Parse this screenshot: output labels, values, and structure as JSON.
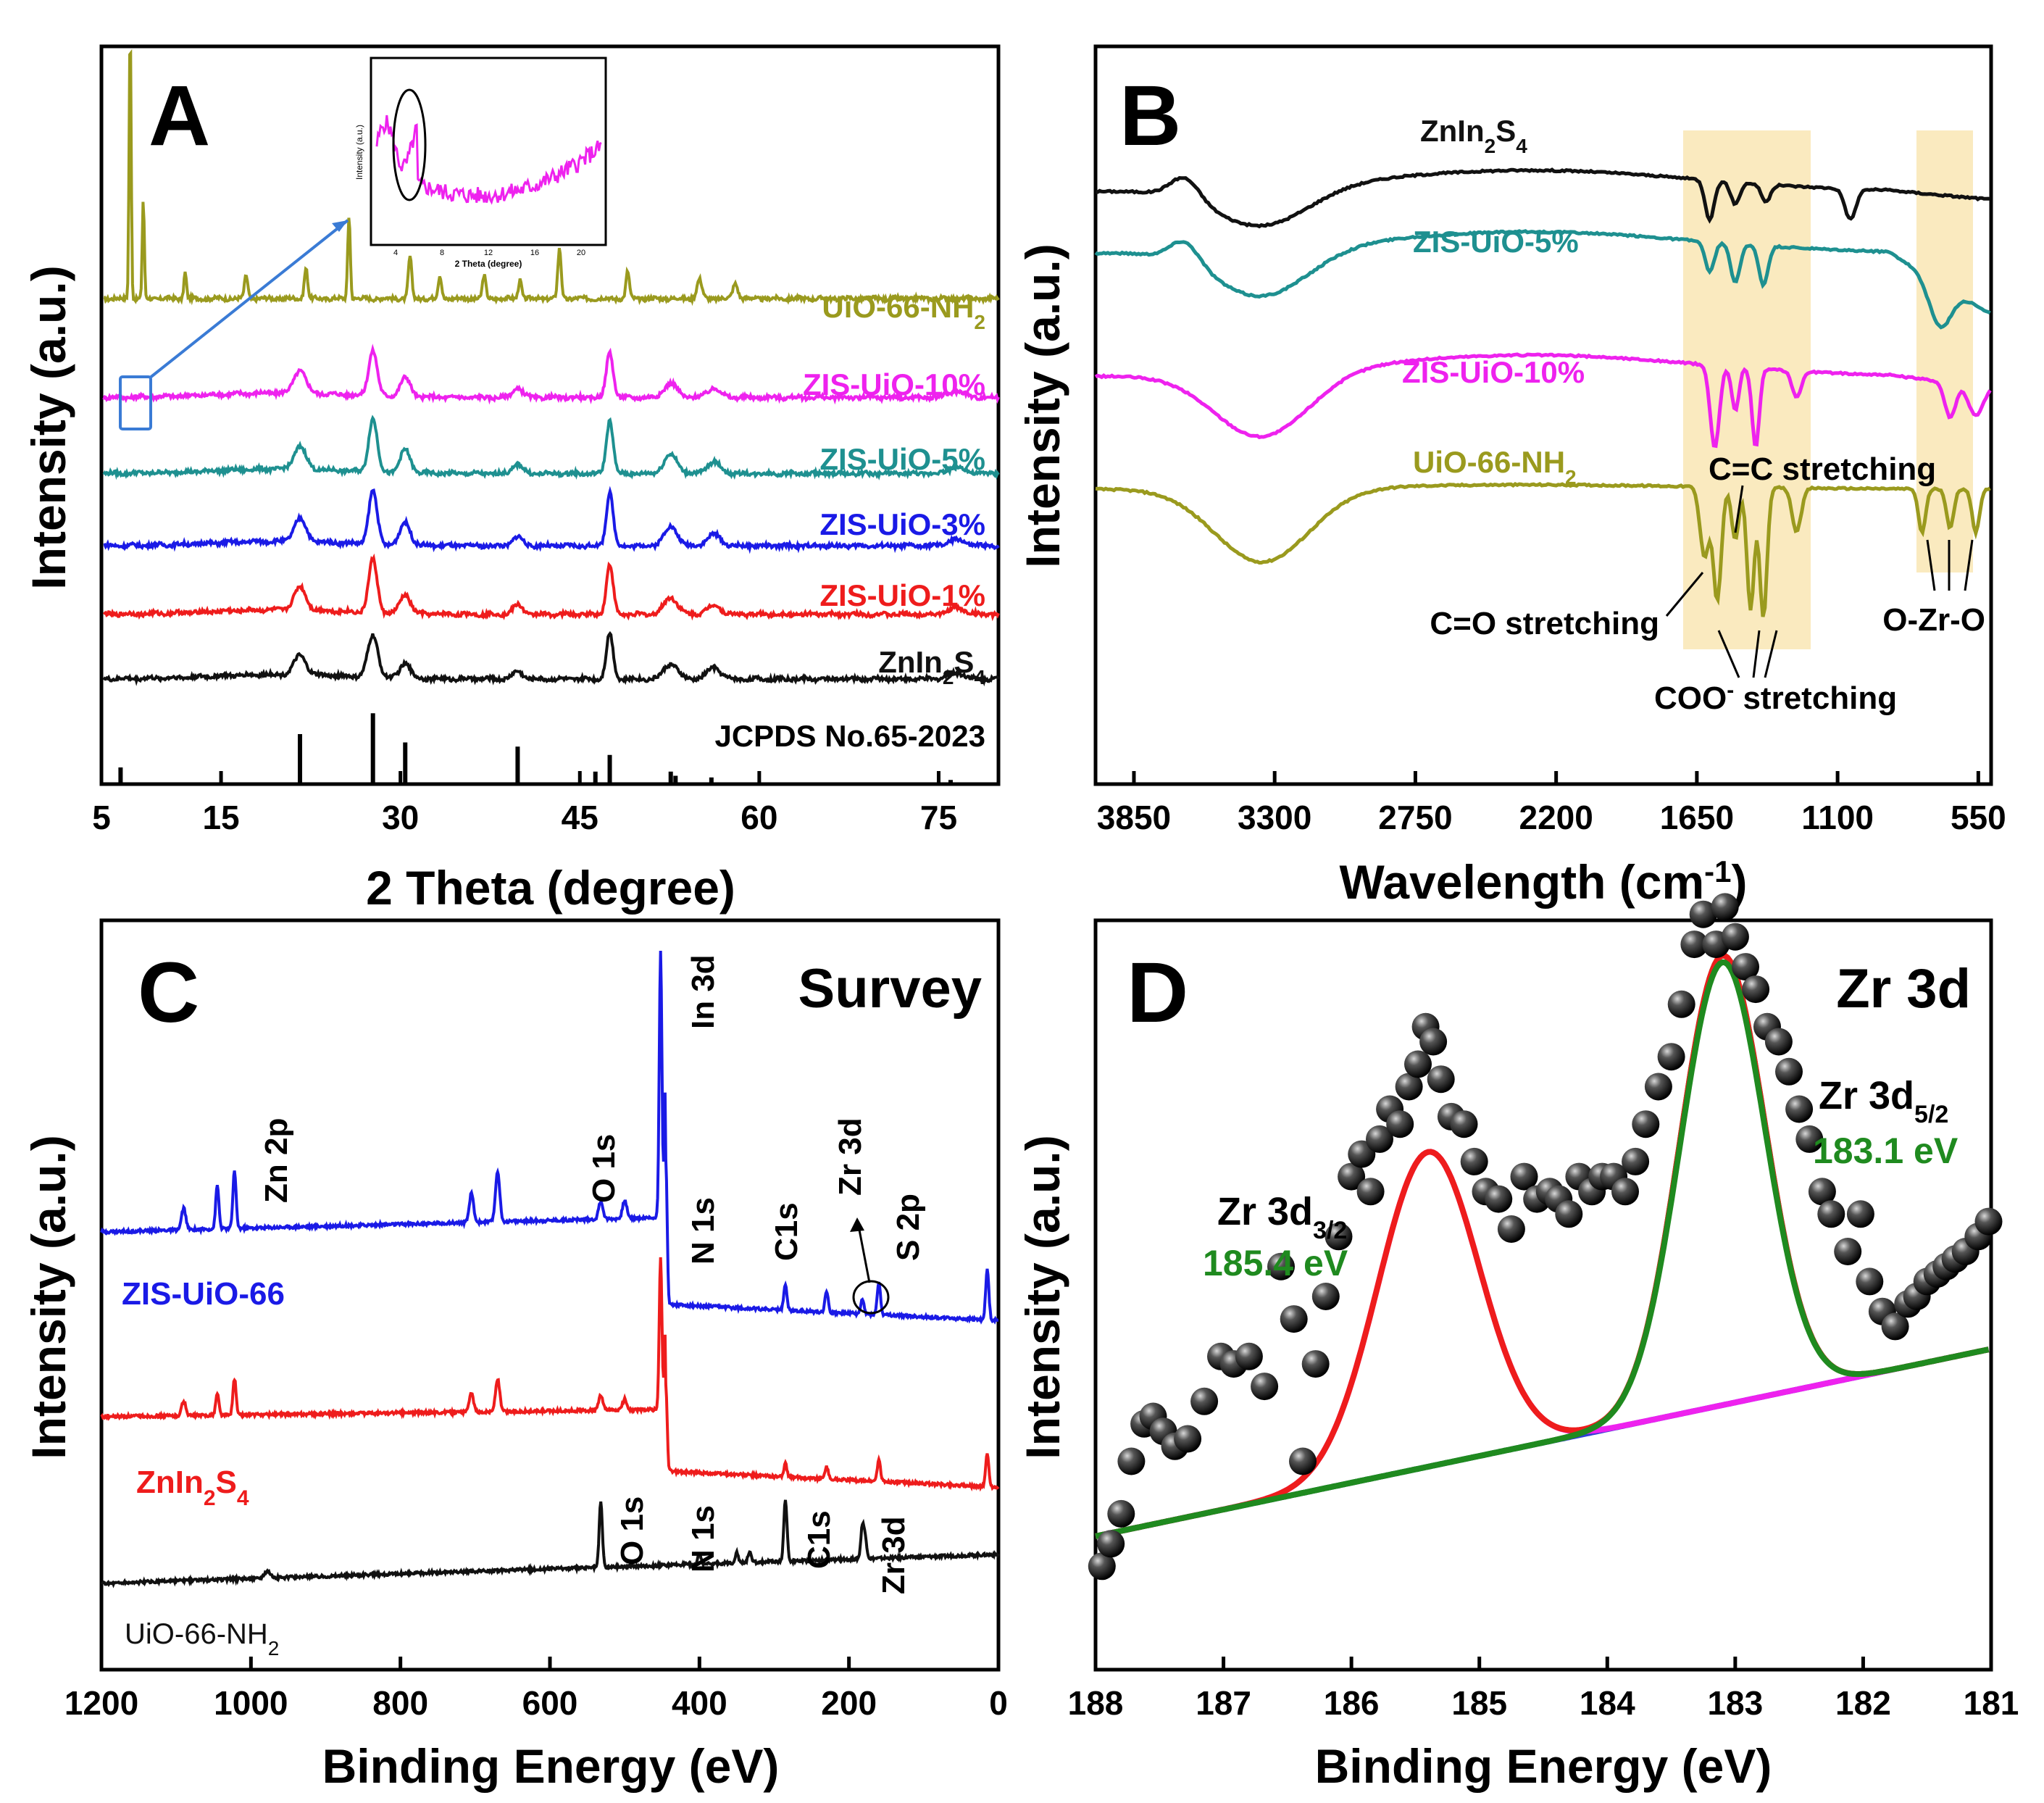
{
  "figure": {
    "panels": [
      "A",
      "B",
      "C",
      "D"
    ]
  },
  "chart_data": [
    {
      "panel": "A",
      "type": "line",
      "title": "",
      "xlabel": "2 Theta (degree)",
      "ylabel": "Intensity (a.u.)",
      "xlim": [
        5,
        80
      ],
      "xticks": [
        5,
        15,
        30,
        45,
        60,
        75
      ],
      "xtick_labels": [
        "5",
        "15",
        "30",
        "45",
        "60",
        "75"
      ],
      "series": [
        {
          "name": "UiO-66-NH",
          "sub": "2",
          "color": "#9a9a1e",
          "offset": 6.0,
          "scale": 1.0,
          "peaks": [
            [
              7.4,
              3.6,
              0.12
            ],
            [
              8.5,
              1.3,
              0.12
            ],
            [
              12.0,
              0.35,
              0.15
            ],
            [
              17.1,
              0.3,
              0.2
            ],
            [
              22.1,
              0.4,
              0.2
            ],
            [
              25.7,
              1.1,
              0.15
            ],
            [
              30.8,
              0.55,
              0.2
            ],
            [
              33.3,
              0.3,
              0.2
            ],
            [
              37.0,
              0.3,
              0.2
            ],
            [
              40.0,
              0.25,
              0.2
            ],
            [
              43.3,
              0.65,
              0.2
            ],
            [
              49.0,
              0.35,
              0.2
            ],
            [
              55.0,
              0.25,
              0.3
            ],
            [
              58.0,
              0.2,
              0.3
            ]
          ]
        },
        {
          "name": "ZIS-UiO-10%",
          "sub": "",
          "color": "#ee22ee",
          "offset": 4.7,
          "scale": 1.0,
          "peaks": [
            [
              21.6,
              0.3,
              0.7
            ],
            [
              27.7,
              0.6,
              0.5
            ],
            [
              30.4,
              0.25,
              0.6
            ],
            [
              39.8,
              0.12,
              0.6
            ],
            [
              47.5,
              0.6,
              0.4
            ],
            [
              52.6,
              0.18,
              0.8
            ],
            [
              56.2,
              0.12,
              0.8
            ],
            [
              76.5,
              0.08,
              1.0
            ]
          ]
        },
        {
          "name": "ZIS-UiO-5%",
          "sub": "",
          "color": "#1e9090",
          "offset": 3.7,
          "scale": 1.0,
          "peaks": [
            [
              21.6,
              0.3,
              0.7
            ],
            [
              27.7,
              0.7,
              0.5
            ],
            [
              30.4,
              0.3,
              0.6
            ],
            [
              39.8,
              0.12,
              0.6
            ],
            [
              47.5,
              0.7,
              0.4
            ],
            [
              52.6,
              0.25,
              0.8
            ],
            [
              56.2,
              0.15,
              0.8
            ],
            [
              76.5,
              0.08,
              1.0
            ]
          ]
        },
        {
          "name": "ZIS-UiO-3%",
          "sub": "",
          "color": "#1a1ae6",
          "offset": 2.75,
          "scale": 1.0,
          "peaks": [
            [
              21.6,
              0.3,
              0.7
            ],
            [
              27.7,
              0.7,
              0.5
            ],
            [
              30.4,
              0.3,
              0.6
            ],
            [
              39.8,
              0.12,
              0.6
            ],
            [
              47.5,
              0.7,
              0.4
            ],
            [
              52.6,
              0.25,
              0.8
            ],
            [
              56.2,
              0.15,
              0.8
            ],
            [
              76.5,
              0.08,
              1.0
            ]
          ]
        },
        {
          "name": "ZIS-UiO-1%",
          "sub": "",
          "color": "#ee1c1c",
          "offset": 1.85,
          "scale": 1.0,
          "peaks": [
            [
              21.6,
              0.3,
              0.7
            ],
            [
              27.7,
              0.7,
              0.5
            ],
            [
              30.4,
              0.25,
              0.6
            ],
            [
              39.8,
              0.12,
              0.6
            ],
            [
              47.5,
              0.65,
              0.4
            ],
            [
              52.6,
              0.22,
              0.8
            ],
            [
              56.2,
              0.12,
              0.8
            ],
            [
              76.5,
              0.08,
              1.0
            ]
          ]
        },
        {
          "name": "ZnIn",
          "sub": "2",
          "name2": "S",
          "sub2": "4",
          "color": "#111111",
          "offset": 1.0,
          "scale": 1.0,
          "peaks": [
            [
              21.6,
              0.25,
              0.7
            ],
            [
              27.7,
              0.55,
              0.6
            ],
            [
              30.4,
              0.2,
              0.6
            ],
            [
              39.8,
              0.1,
              0.6
            ],
            [
              47.5,
              0.6,
              0.4
            ],
            [
              52.6,
              0.2,
              0.8
            ],
            [
              56.2,
              0.15,
              0.8
            ],
            [
              76.5,
              0.08,
              1.0
            ]
          ]
        }
      ],
      "reference": {
        "label": "JCPDS No.65-2023",
        "sticks": [
          [
            6.6,
            0.2
          ],
          [
            21.6,
            0.6
          ],
          [
            27.7,
            0.85
          ],
          [
            30.4,
            0.5
          ],
          [
            39.8,
            0.45
          ],
          [
            46.3,
            0.15
          ],
          [
            47.5,
            0.35
          ],
          [
            52.6,
            0.15
          ],
          [
            53.0,
            0.1
          ],
          [
            56.0,
            0.08
          ],
          [
            76.0,
            0.05
          ]
        ]
      },
      "inset": {
        "xlabel": "2 Theta (degree)",
        "ylabel": "Intensity (a.u.)",
        "xticks": [
          "4",
          "8",
          "12",
          "16",
          "20"
        ]
      }
    },
    {
      "panel": "B",
      "type": "line",
      "xlabel": "Wavelength (cm",
      "xlabel_sup": "-1",
      "xlabel_end": ")",
      "ylabel": "Intensity (a.u.)",
      "xlim": [
        4000,
        500
      ],
      "xticks": [
        3850,
        3300,
        2750,
        2200,
        1650,
        1100,
        550
      ],
      "xtick_labels": [
        "3850",
        "3300",
        "2750",
        "2200",
        "1650",
        "1100",
        "550"
      ],
      "highlight_regions": [
        [
          1650,
          1150
        ],
        [
          750,
          520
        ]
      ],
      "series": [
        {
          "name": "ZnIn",
          "sub": "2",
          "name2": "S",
          "sub2": "4",
          "color": "#111111"
        },
        {
          "name": "ZIS-UiO-5%",
          "sub": "",
          "color": "#1e9090"
        },
        {
          "name": "ZIS-UiO-10%",
          "sub": "",
          "color": "#ee22ee"
        },
        {
          "name": "UiO-66-NH",
          "sub": "2",
          "color": "#9a9a1e"
        }
      ],
      "annotations": {
        "cc": "C=C stretching",
        "co": "C=O stretching",
        "coo": "COO",
        "coo_sup": "-",
        "coo_end": " stretching",
        "ozro": "O-Zr-O"
      }
    },
    {
      "panel": "C",
      "type": "line",
      "title": "Survey",
      "xlabel": "Binding Energy (eV)",
      "ylabel": "Intensity (a.u.)",
      "xlim": [
        1200,
        0
      ],
      "xticks": [
        1200,
        1000,
        800,
        600,
        400,
        200,
        0
      ],
      "xtick_labels": [
        "1200",
        "1000",
        "800",
        "600",
        "400",
        "200",
        "0"
      ],
      "series": [
        {
          "name": "ZIS-UiO-66",
          "color": "#1a1ae6"
        },
        {
          "name": "ZnIn",
          "sub": "2",
          "name2": "S",
          "sub2": "4",
          "color": "#ee1c1c"
        },
        {
          "name": "UiO-66-NH",
          "sub": "2",
          "color": "#111111"
        }
      ],
      "peak_labels": {
        "zn2p": "Zn 2p",
        "o1s": "O 1s",
        "in3d": "In 3d",
        "n1s": "N 1s",
        "c1s": "C1s",
        "zr3d": "Zr 3d",
        "s2p": "S 2p"
      }
    },
    {
      "panel": "D",
      "type": "scatter",
      "title": "Zr 3d",
      "xlabel": "Binding Energy (eV)",
      "ylabel": "Intensity (a.u.)",
      "xlim": [
        188,
        181
      ],
      "ylim": [
        0,
        100
      ],
      "xticks": [
        188,
        187,
        186,
        185,
        184,
        183,
        182,
        181
      ],
      "xtick_labels": [
        "188",
        "187",
        "186",
        "185",
        "184",
        "183",
        "182",
        "181"
      ],
      "peaks": [
        {
          "label": "Zr 3d",
          "sub": "3/2",
          "value": "185.4 eV",
          "center": 185.4,
          "amplitude": 42,
          "sigma": 0.5
        },
        {
          "label": "Zr 3d",
          "sub": "5/2",
          "value": "183.1 eV",
          "center": 183.1,
          "amplitude": 60,
          "sigma": 0.42
        }
      ],
      "background": {
        "start": 12,
        "end": 37
      },
      "points": [
        [
          187.95,
          8
        ],
        [
          187.88,
          11
        ],
        [
          187.8,
          15
        ],
        [
          187.72,
          22
        ],
        [
          187.62,
          27
        ],
        [
          187.55,
          28
        ],
        [
          187.47,
          26
        ],
        [
          187.38,
          24
        ],
        [
          187.28,
          25
        ],
        [
          187.15,
          30
        ],
        [
          187.02,
          36
        ],
        [
          186.92,
          35
        ],
        [
          186.8,
          36
        ],
        [
          186.68,
          32
        ],
        [
          186.55,
          48
        ],
        [
          186.45,
          41
        ],
        [
          186.38,
          22
        ],
        [
          186.28,
          35
        ],
        [
          186.2,
          44
        ],
        [
          186.1,
          52
        ],
        [
          186.0,
          60
        ],
        [
          185.92,
          63
        ],
        [
          185.85,
          58
        ],
        [
          185.78,
          65
        ],
        [
          185.7,
          69
        ],
        [
          185.62,
          67
        ],
        [
          185.55,
          72
        ],
        [
          185.48,
          75
        ],
        [
          185.42,
          80
        ],
        [
          185.36,
          78
        ],
        [
          185.3,
          73
        ],
        [
          185.22,
          68
        ],
        [
          185.12,
          67
        ],
        [
          185.04,
          62
        ],
        [
          184.95,
          58
        ],
        [
          184.85,
          57
        ],
        [
          184.75,
          53
        ],
        [
          184.65,
          60
        ],
        [
          184.55,
          57
        ],
        [
          184.45,
          58
        ],
        [
          184.38,
          57
        ],
        [
          184.3,
          55
        ],
        [
          184.22,
          60
        ],
        [
          184.12,
          58
        ],
        [
          184.04,
          60
        ],
        [
          183.95,
          60
        ],
        [
          183.86,
          58
        ],
        [
          183.78,
          62
        ],
        [
          183.7,
          67
        ],
        [
          183.6,
          72
        ],
        [
          183.5,
          76
        ],
        [
          183.42,
          83
        ],
        [
          183.32,
          91
        ],
        [
          183.25,
          95
        ],
        [
          183.15,
          91
        ],
        [
          183.08,
          96
        ],
        [
          183.0,
          92
        ],
        [
          182.92,
          88
        ],
        [
          182.84,
          85
        ],
        [
          182.75,
          80
        ],
        [
          182.66,
          78
        ],
        [
          182.58,
          74
        ],
        [
          182.5,
          69
        ],
        [
          182.42,
          65
        ],
        [
          182.32,
          58
        ],
        [
          182.25,
          55
        ],
        [
          182.12,
          50
        ],
        [
          182.02,
          55
        ],
        [
          181.95,
          46
        ],
        [
          181.85,
          42
        ],
        [
          181.75,
          40
        ],
        [
          181.65,
          43
        ],
        [
          181.58,
          44
        ],
        [
          181.5,
          46
        ],
        [
          181.42,
          47
        ],
        [
          181.35,
          48
        ],
        [
          181.28,
          49
        ],
        [
          181.2,
          50
        ],
        [
          181.1,
          52
        ],
        [
          181.02,
          54
        ]
      ]
    }
  ]
}
